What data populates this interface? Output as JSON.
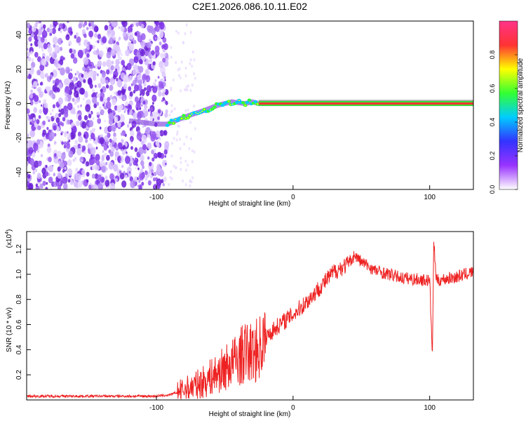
{
  "chart_data": [
    {
      "type": "heatmap",
      "title": "C2E1.2026.086.10.11.E02",
      "xlabel": "Height of straight line (km)",
      "ylabel": "Frequency (Hz)",
      "xlim": [
        -195,
        132
      ],
      "ylim": [
        -50,
        48
      ],
      "x_ticks": [
        -100,
        0,
        100
      ],
      "x_tick_labels": [
        "-100",
        "0",
        "100"
      ],
      "y_ticks": [
        -40,
        -20,
        0,
        20,
        40
      ],
      "y_tick_labels": [
        "-40",
        "-20",
        "0",
        "20",
        "40"
      ],
      "noise_region_x": [
        -195,
        -92
      ],
      "signal_path": [
        {
          "x": -120,
          "y": -10
        },
        {
          "x": -100,
          "y": -12
        },
        {
          "x": -92,
          "y": -12
        },
        {
          "x": -80,
          "y": -8
        },
        {
          "x": -65,
          "y": -4
        },
        {
          "x": -55,
          "y": -1
        },
        {
          "x": -45,
          "y": 1
        },
        {
          "x": -35,
          "y": 0
        },
        {
          "x": -30,
          "y": 1
        },
        {
          "x": -25,
          "y": 0
        },
        {
          "x": 0,
          "y": 0
        },
        {
          "x": 50,
          "y": 0
        },
        {
          "x": 100,
          "y": 0
        },
        {
          "x": 132,
          "y": 0
        }
      ],
      "colorbar": {
        "label": "Normalized spectral amplitude",
        "range": [
          0,
          1
        ],
        "ticks": [
          0.0,
          0.2,
          0.4,
          0.6,
          0.8
        ],
        "tick_labels": [
          "0.0",
          "0.2",
          "0.4",
          "0.6",
          "0.8"
        ],
        "colors": [
          "#ffffff",
          "#9933ff",
          "#3333ff",
          "#00ccff",
          "#33ff33",
          "#ffff00",
          "#ff3333",
          "#ff3388"
        ]
      }
    },
    {
      "type": "line",
      "title": "",
      "xlabel": "Height of straight line (km)",
      "ylabel": "SNR (10 * v/v)",
      "y_scale_label": "(x10",
      "y_scale_exponent": "4",
      "y_scale_suffix": ")",
      "xlim": [
        -195,
        132
      ],
      "ylim": [
        0,
        1.34
      ],
      "x_ticks": [
        -100,
        0,
        100
      ],
      "x_tick_labels": [
        "-100",
        "0",
        "100"
      ],
      "y_ticks": [
        0.2,
        0.4,
        0.6,
        0.8,
        1.0,
        1.2
      ],
      "y_tick_labels": [
        "0.2",
        "0.4",
        "0.6",
        "0.8",
        "1.0",
        "1.2"
      ],
      "line_color": "#ee2222",
      "series": [
        {
          "name": "SNR",
          "x": [
            -195,
            -140,
            -110,
            -100,
            -90,
            -85,
            -80,
            -70,
            -60,
            -50,
            -40,
            -35,
            -30,
            -25,
            -20,
            -10,
            0,
            10,
            20,
            30,
            40,
            45,
            50,
            60,
            70,
            80,
            90,
            100,
            102,
            103,
            105,
            110,
            120,
            132
          ],
          "values": [
            0.03,
            0.03,
            0.03,
            0.03,
            0.04,
            0.06,
            0.08,
            0.12,
            0.18,
            0.25,
            0.33,
            0.38,
            0.37,
            0.41,
            0.5,
            0.6,
            0.68,
            0.78,
            0.9,
            1.02,
            1.08,
            1.15,
            1.1,
            1.03,
            1.0,
            0.97,
            0.96,
            0.95,
            0.35,
            1.25,
            0.95,
            0.96,
            0.98,
            1.02
          ]
        }
      ]
    }
  ]
}
